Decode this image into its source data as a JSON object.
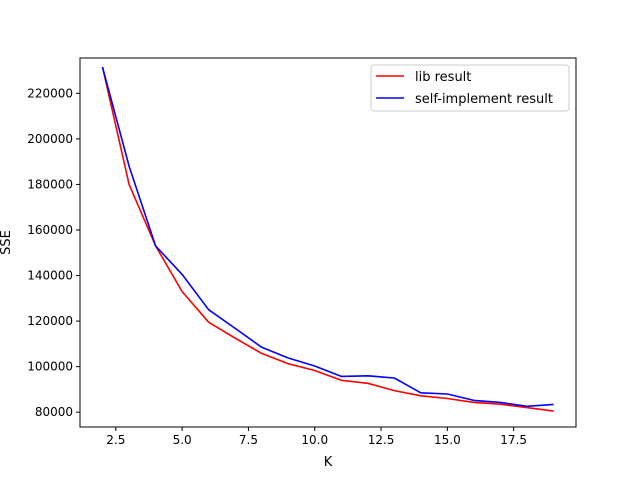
{
  "chart_data": {
    "type": "line",
    "xlabel": "K",
    "ylabel": "SSE",
    "xlim": [
      1.15,
      19.85
    ],
    "ylim": [
      73500,
      235500
    ],
    "xticks": [
      2.5,
      5.0,
      7.5,
      10.0,
      12.5,
      15.0,
      17.5
    ],
    "xtick_labels": [
      "2.5",
      "5.0",
      "7.5",
      "10.0",
      "12.5",
      "15.0",
      "17.5"
    ],
    "yticks": [
      80000,
      100000,
      120000,
      140000,
      160000,
      180000,
      200000,
      220000
    ],
    "ytick_labels": [
      "80000",
      "100000",
      "120000",
      "140000",
      "160000",
      "180000",
      "200000",
      "220000"
    ],
    "grid": false,
    "legend_position": "top-right",
    "x": [
      2,
      3,
      4,
      5,
      6,
      7,
      8,
      9,
      10,
      11,
      12,
      13,
      14,
      15,
      16,
      17,
      18,
      19
    ],
    "series": [
      {
        "name": "lib result",
        "color": "#ff0000",
        "values": [
          231500,
          180000,
          153000,
          133000,
          119500,
          112500,
          105800,
          101300,
          98300,
          94000,
          92700,
          89500,
          87200,
          86000,
          84300,
          83500,
          82000,
          80500
        ]
      },
      {
        "name": "self-implement result",
        "color": "#0000ff",
        "values": [
          231500,
          188000,
          153000,
          140500,
          125000,
          116800,
          108500,
          103800,
          100300,
          95700,
          96000,
          95000,
          88500,
          88000,
          85200,
          84300,
          82600,
          83400
        ]
      }
    ]
  }
}
